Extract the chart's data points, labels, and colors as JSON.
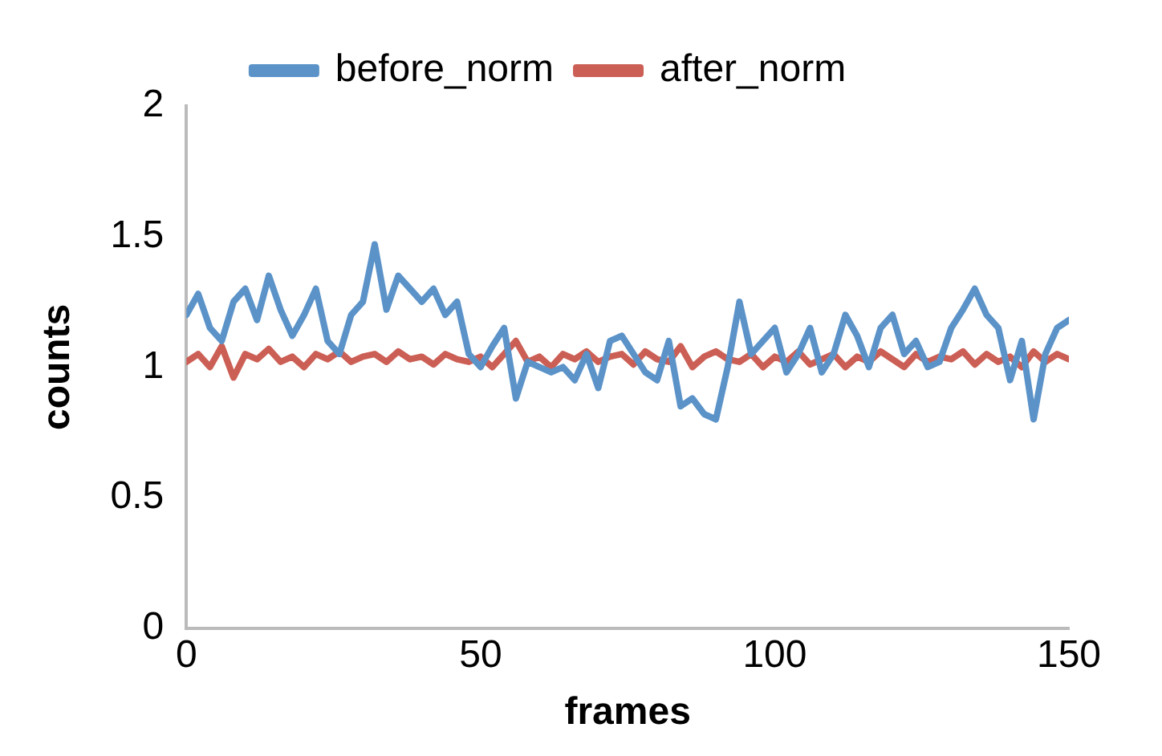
{
  "chart_data": {
    "type": "line",
    "xlabel": "frames",
    "ylabel": "counts",
    "x": [
      0,
      2,
      4,
      6,
      8,
      10,
      12,
      14,
      16,
      18,
      20,
      22,
      24,
      26,
      28,
      30,
      32,
      34,
      36,
      38,
      40,
      42,
      44,
      46,
      48,
      50,
      52,
      54,
      56,
      58,
      60,
      62,
      64,
      66,
      68,
      70,
      72,
      74,
      76,
      78,
      80,
      82,
      84,
      86,
      88,
      90,
      92,
      94,
      96,
      98,
      100,
      102,
      104,
      106,
      108,
      110,
      112,
      114,
      116,
      118,
      120,
      122,
      124,
      126,
      128,
      130,
      132,
      134,
      136,
      138,
      140,
      142,
      144,
      146,
      148,
      150
    ],
    "series": [
      {
        "name": "before_norm",
        "color": "#5b93c9",
        "values": [
          1.2,
          1.28,
          1.15,
          1.1,
          1.25,
          1.3,
          1.18,
          1.35,
          1.22,
          1.12,
          1.2,
          1.3,
          1.1,
          1.05,
          1.2,
          1.25,
          1.47,
          1.22,
          1.35,
          1.3,
          1.25,
          1.3,
          1.2,
          1.25,
          1.05,
          1.0,
          1.08,
          1.15,
          0.88,
          1.02,
          1.0,
          0.98,
          1.0,
          0.95,
          1.05,
          0.92,
          1.1,
          1.12,
          1.05,
          0.98,
          0.95,
          1.1,
          0.85,
          0.88,
          0.82,
          0.8,
          1.0,
          1.25,
          1.05,
          1.1,
          1.15,
          0.98,
          1.05,
          1.15,
          0.98,
          1.05,
          1.2,
          1.12,
          1.0,
          1.15,
          1.2,
          1.05,
          1.1,
          1.0,
          1.02,
          1.15,
          1.22,
          1.3,
          1.2,
          1.15,
          0.95,
          1.1,
          0.8,
          1.05,
          1.15,
          1.18
        ]
      },
      {
        "name": "after_norm",
        "color": "#cc5f55",
        "values": [
          1.02,
          1.05,
          1.0,
          1.08,
          0.96,
          1.05,
          1.03,
          1.07,
          1.02,
          1.04,
          1.0,
          1.05,
          1.03,
          1.06,
          1.02,
          1.04,
          1.05,
          1.02,
          1.06,
          1.03,
          1.04,
          1.01,
          1.05,
          1.03,
          1.02,
          1.04,
          1.0,
          1.05,
          1.1,
          1.02,
          1.04,
          1.0,
          1.05,
          1.03,
          1.06,
          1.02,
          1.04,
          1.05,
          1.01,
          1.06,
          1.03,
          1.02,
          1.08,
          1.0,
          1.04,
          1.06,
          1.03,
          1.02,
          1.05,
          1.0,
          1.04,
          1.02,
          1.06,
          1.01,
          1.03,
          1.05,
          1.0,
          1.04,
          1.02,
          1.06,
          1.03,
          1.0,
          1.05,
          1.02,
          1.04,
          1.03,
          1.06,
          1.01,
          1.05,
          1.02,
          1.04,
          1.0,
          1.06,
          1.02,
          1.05,
          1.03
        ]
      }
    ],
    "xlim": [
      0,
      150
    ],
    "xticks": [
      0,
      50,
      100,
      150
    ],
    "ylim": [
      0,
      2
    ],
    "yticks": [
      0,
      0.5,
      1,
      1.5,
      2
    ],
    "grid": false,
    "legend": "top",
    "marker": "none",
    "line_style": "solid"
  }
}
